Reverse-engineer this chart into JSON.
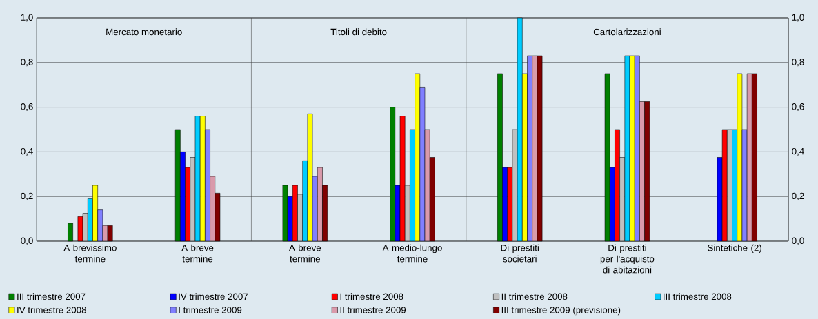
{
  "chart_data": {
    "type": "bar",
    "categories": [
      "A brevissimo termine",
      "A breve termine",
      "A breve termine",
      "A medio-lungo termine",
      "Di prestiti societari",
      "Di prestiti per l'acquisto di abitazioni",
      "Sintetiche  (2)"
    ],
    "series": [
      {
        "name": "III trimestre 2007",
        "color": "#008000",
        "values": [
          0.08,
          0.5,
          0.25,
          0.6,
          0.75,
          0.75,
          null
        ]
      },
      {
        "name": "IV trimestre 2007",
        "color": "#0000ff",
        "values": [
          null,
          0.4,
          0.2,
          0.25,
          0.33,
          0.33,
          0.375
        ]
      },
      {
        "name": "I trimestre 2008",
        "color": "#ff0000",
        "values": [
          0.11,
          0.33,
          0.25,
          0.56,
          0.33,
          0.5,
          0.5
        ]
      },
      {
        "name": "II trimestre 2008",
        "color": "#c0c0c0",
        "values": [
          0.125,
          0.375,
          0.21,
          0.25,
          0.5,
          0.375,
          0.5
        ]
      },
      {
        "name": "III trimestre 2008",
        "color": "#00ccff",
        "values": [
          0.19,
          0.56,
          0.36,
          0.5,
          1.0,
          0.83,
          0.5
        ]
      },
      {
        "name": "IV trimestre 2008",
        "color": "#ffff00",
        "values": [
          0.25,
          0.56,
          0.57,
          0.75,
          0.75,
          0.83,
          0.75
        ]
      },
      {
        "name": "I trimestre 2009",
        "color": "#8080ff",
        "values": [
          0.14,
          0.5,
          0.29,
          0.69,
          0.83,
          0.83,
          0.5
        ]
      },
      {
        "name": "II trimestre 2009",
        "color": "#d99aab",
        "values": [
          0.07,
          0.29,
          0.33,
          0.5,
          0.83,
          0.625,
          0.75
        ]
      },
      {
        "name": "III trimestre 2009 (previsione)",
        "color": "#800000",
        "values": [
          0.07,
          0.215,
          0.25,
          0.375,
          0.83,
          0.625,
          0.75
        ]
      }
    ],
    "ylim": [
      0,
      1
    ],
    "yticks": [
      {
        "value": 0,
        "label": "0,0"
      },
      {
        "value": 0.2,
        "label": "0,2"
      },
      {
        "value": 0.4,
        "label": "0,4"
      },
      {
        "value": 0.6,
        "label": "0,6"
      },
      {
        "value": 0.8,
        "label": "0,8"
      },
      {
        "value": 1,
        "label": "1,0"
      }
    ],
    "y2lim": [
      0,
      1
    ],
    "y2ticks": [
      {
        "value": 0,
        "label": "0,0"
      },
      {
        "value": 0.2,
        "label": "0,2"
      },
      {
        "value": 0.4,
        "label": "0,4"
      },
      {
        "value": 0.6,
        "label": "0,6"
      },
      {
        "value": 0.8,
        "label": "0,8"
      },
      {
        "value": 1,
        "label": "1,0"
      }
    ],
    "annotations": [
      "Mercato monetario",
      "Titoli di debito",
      "Cartolarizzazioni"
    ],
    "grid": "y",
    "legend": "bottom"
  }
}
